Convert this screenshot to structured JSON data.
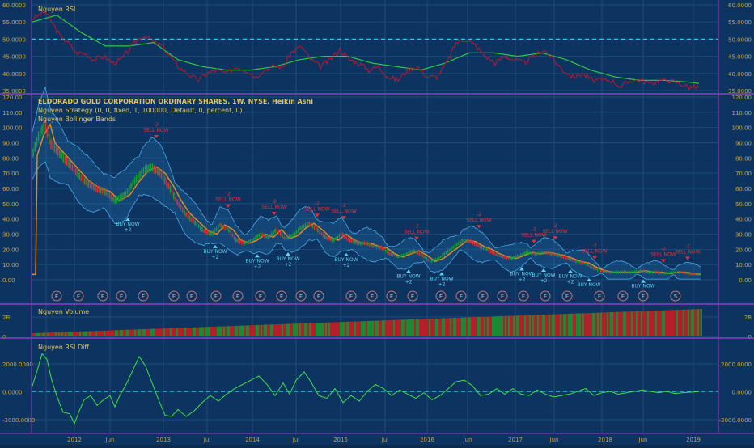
{
  "colors": {
    "background": "#0d3460",
    "grid": "#1d4a7a",
    "separator": "#8b3fc8",
    "axis_text": "#c7a23b",
    "time_text": "#c7a23b",
    "title_text": "#e2c35a",
    "rsi_line": "#c0152f",
    "rsi_ma": "#2fc83f",
    "dashed": "#2ec9e3",
    "candle_up": "#1a9a3a",
    "candle_down": "#d8303a",
    "bb_fill": "#1f6aa3",
    "bb_line": "#4aa8e0",
    "basis": "#e08a1c",
    "buy_text": "#5fd2f0",
    "sell_text": "#e5303a",
    "vol_up": "#1a8a34",
    "vol_down": "#b3202c",
    "diff_line": "#3fe040",
    "event_ring": "#c07a7a"
  },
  "panels": {
    "rsi": {
      "title": "Nguyen RSI",
      "ticks": [
        "60.0000",
        "55.0000",
        "50.0000",
        "45.0000",
        "40.0000",
        "35.0000"
      ]
    },
    "price": {
      "title": "ELDORADO GOLD CORPORATION ORDINARY SHARES, 1W, NYSE, Heikin Ashi",
      "strategy": "Nguyen Strategy (0, 0, fixed, 1, 100000, Default, 0, percent, 0)",
      "bands": "Nguyen Bollinger Bands",
      "ticks": [
        "120.00",
        "110.00",
        "100.00",
        "90.00",
        "80.00",
        "70.00",
        "60.00",
        "50.00",
        "40.00",
        "30.00",
        "20.00",
        "10.00",
        "0.00"
      ]
    },
    "volume": {
      "title": "Nguyen Volume",
      "ticks": [
        "2B",
        "0"
      ]
    },
    "diff": {
      "title": "Nguyen RSI Diff",
      "ticks": [
        "2000.0000",
        "0.0000",
        "-2000.0000"
      ]
    }
  },
  "time_axis": [
    "2012",
    "Jun",
    "2013",
    "Jul",
    "2014",
    "Jul",
    "2015",
    "Jul",
    "2016",
    "Jun",
    "2017",
    "Jun",
    "2018",
    "Jun",
    "2019"
  ],
  "signals": {
    "buy": [
      {
        "label": "BUY NOW",
        "sub": "+2"
      },
      {
        "label": "BUY NOW",
        "sub": "+2"
      },
      {
        "label": "BUY NOW",
        "sub": "+2"
      },
      {
        "label": "BUY NOW",
        "sub": "+2"
      },
      {
        "label": "BUY NOW",
        "sub": "+2"
      },
      {
        "label": "BUY NOW",
        "sub": "+2"
      },
      {
        "label": "BUY NOW",
        "sub": "+2"
      },
      {
        "label": "BUY NOW",
        "sub": "+2"
      },
      {
        "label": "BUY NOW",
        "sub": "+2"
      },
      {
        "label": "BUY NOW",
        "sub": "+2"
      },
      {
        "label": "BUY NOW",
        "sub": ""
      },
      {
        "label": "BUY NOW",
        "sub": ""
      }
    ],
    "sell": [
      {
        "label": "SELL NOW",
        "sub": "-2"
      },
      {
        "label": "SELL NOW",
        "sub": "-2"
      },
      {
        "label": "SELL NOW",
        "sub": "-2"
      },
      {
        "label": "SELL NOW",
        "sub": "-2"
      },
      {
        "label": "SELL NOW",
        "sub": "-2"
      },
      {
        "label": "SELL NOW",
        "sub": "-2"
      },
      {
        "label": "SELL NOW",
        "sub": "-2"
      },
      {
        "label": "SELL NOW",
        "sub": "-2"
      },
      {
        "label": "SELL NOW",
        "sub": "-2"
      },
      {
        "label": "SELL NOW",
        "sub": "-2"
      },
      {
        "label": "SELL NOW",
        "sub": "-2"
      },
      {
        "label": "SELL NOW",
        "sub": "-2"
      }
    ]
  },
  "events": [
    "E",
    "E",
    "E",
    "E",
    "E",
    "E",
    "E",
    "E",
    "E",
    "E",
    "E",
    "E",
    "E",
    "E",
    "E",
    "E",
    "E",
    "E",
    "E",
    "E",
    "E",
    "E",
    "E",
    "E",
    "E",
    "E",
    "E",
    "S"
  ]
}
